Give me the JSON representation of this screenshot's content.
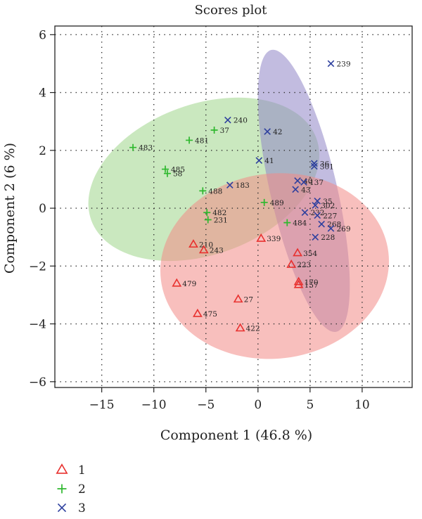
{
  "colors": {
    "group1": "#e8302e",
    "group2": "#2eb82e",
    "group3": "#2d3f9e",
    "ellipse1": "#f28a86",
    "ellipse2": "#9ed68a",
    "ellipse3": "#8f85c7",
    "grid": "#333333",
    "axis": "#222222"
  },
  "chart_data": {
    "type": "scatter",
    "title": "Scores plot",
    "xlabel": "Component 1 (46.8 %)",
    "ylabel": "Component 2 (6 %)",
    "xlim": [
      -19.5,
      14.8
    ],
    "ylim": [
      -6.2,
      6.3
    ],
    "xticks": [
      -15,
      -10,
      -5,
      0,
      5,
      10
    ],
    "yticks": [
      -6,
      -4,
      -2,
      0,
      2,
      4,
      6
    ],
    "xtick_labels": [
      "−15",
      "−10",
      "−5",
      "0",
      "5",
      "10"
    ],
    "ytick_labels": [
      "−6",
      "−4",
      "−2",
      "0",
      "2",
      "4",
      "6"
    ],
    "grid": true,
    "legend_position": "bottom-left",
    "series": [
      {
        "name": "1",
        "marker": "triangle",
        "color_key": "group1",
        "ellipse": {
          "cx": 1.6,
          "cy": -2.0,
          "rx": 11.0,
          "ry": 3.2,
          "angle": -7
        },
        "points": [
          {
            "x": 0.3,
            "y": -1.05,
            "label": "339"
          },
          {
            "x": -6.2,
            "y": -1.25,
            "label": "210"
          },
          {
            "x": -5.2,
            "y": -1.45,
            "label": "243"
          },
          {
            "x": 3.8,
            "y": -1.55,
            "label": "354"
          },
          {
            "x": 3.2,
            "y": -1.95,
            "label": "223"
          },
          {
            "x": 3.9,
            "y": -2.55,
            "label": "170"
          },
          {
            "x": 3.9,
            "y": -2.65,
            "label": "157"
          },
          {
            "x": -7.8,
            "y": -2.6,
            "label": "479"
          },
          {
            "x": -1.9,
            "y": -3.15,
            "label": "27"
          },
          {
            "x": -5.8,
            "y": -3.65,
            "label": "475"
          },
          {
            "x": -1.7,
            "y": -4.15,
            "label": "422"
          }
        ]
      },
      {
        "name": "2",
        "marker": "plus",
        "color_key": "group2",
        "ellipse": {
          "cx": -5.2,
          "cy": 1.0,
          "rx": 11.5,
          "ry": 2.6,
          "angle": -20
        },
        "points": [
          {
            "x": -4.2,
            "y": 2.7,
            "label": "37"
          },
          {
            "x": -6.6,
            "y": 2.35,
            "label": "481"
          },
          {
            "x": -12.0,
            "y": 2.1,
            "label": "483"
          },
          {
            "x": -8.9,
            "y": 1.35,
            "label": "485"
          },
          {
            "x": -8.7,
            "y": 1.2,
            "label": "58"
          },
          {
            "x": -5.3,
            "y": 0.6,
            "label": "488"
          },
          {
            "x": 0.6,
            "y": 0.2,
            "label": "489"
          },
          {
            "x": -4.9,
            "y": -0.15,
            "label": "482"
          },
          {
            "x": -4.8,
            "y": -0.4,
            "label": "231"
          },
          {
            "x": 2.8,
            "y": -0.5,
            "label": "484"
          }
        ]
      },
      {
        "name": "3",
        "marker": "cross",
        "color_key": "group3",
        "ellipse": {
          "cx": 4.4,
          "cy": 0.6,
          "rx": 3.2,
          "ry": 5.0,
          "angle": -13
        },
        "points": [
          {
            "x": 7.0,
            "y": 5.0,
            "label": "239"
          },
          {
            "x": -2.9,
            "y": 3.05,
            "label": "240"
          },
          {
            "x": 0.9,
            "y": 2.65,
            "label": "42"
          },
          {
            "x": 0.1,
            "y": 1.65,
            "label": "41"
          },
          {
            "x": 5.4,
            "y": 1.55,
            "label": "36"
          },
          {
            "x": 5.4,
            "y": 1.45,
            "label": "301"
          },
          {
            "x": 3.8,
            "y": 0.95,
            "label": "40"
          },
          {
            "x": 4.4,
            "y": 0.9,
            "label": "137"
          },
          {
            "x": -2.7,
            "y": 0.8,
            "label": "183"
          },
          {
            "x": 3.6,
            "y": 0.65,
            "label": "43"
          },
          {
            "x": 5.7,
            "y": 0.25,
            "label": "35"
          },
          {
            "x": 5.5,
            "y": 0.1,
            "label": "302"
          },
          {
            "x": 4.5,
            "y": -0.15,
            "label": "232"
          },
          {
            "x": 5.7,
            "y": -0.25,
            "label": "227"
          },
          {
            "x": 6.1,
            "y": -0.55,
            "label": "268"
          },
          {
            "x": 7.0,
            "y": -0.7,
            "label": "269"
          },
          {
            "x": 5.5,
            "y": -1.0,
            "label": "228"
          }
        ]
      }
    ]
  }
}
